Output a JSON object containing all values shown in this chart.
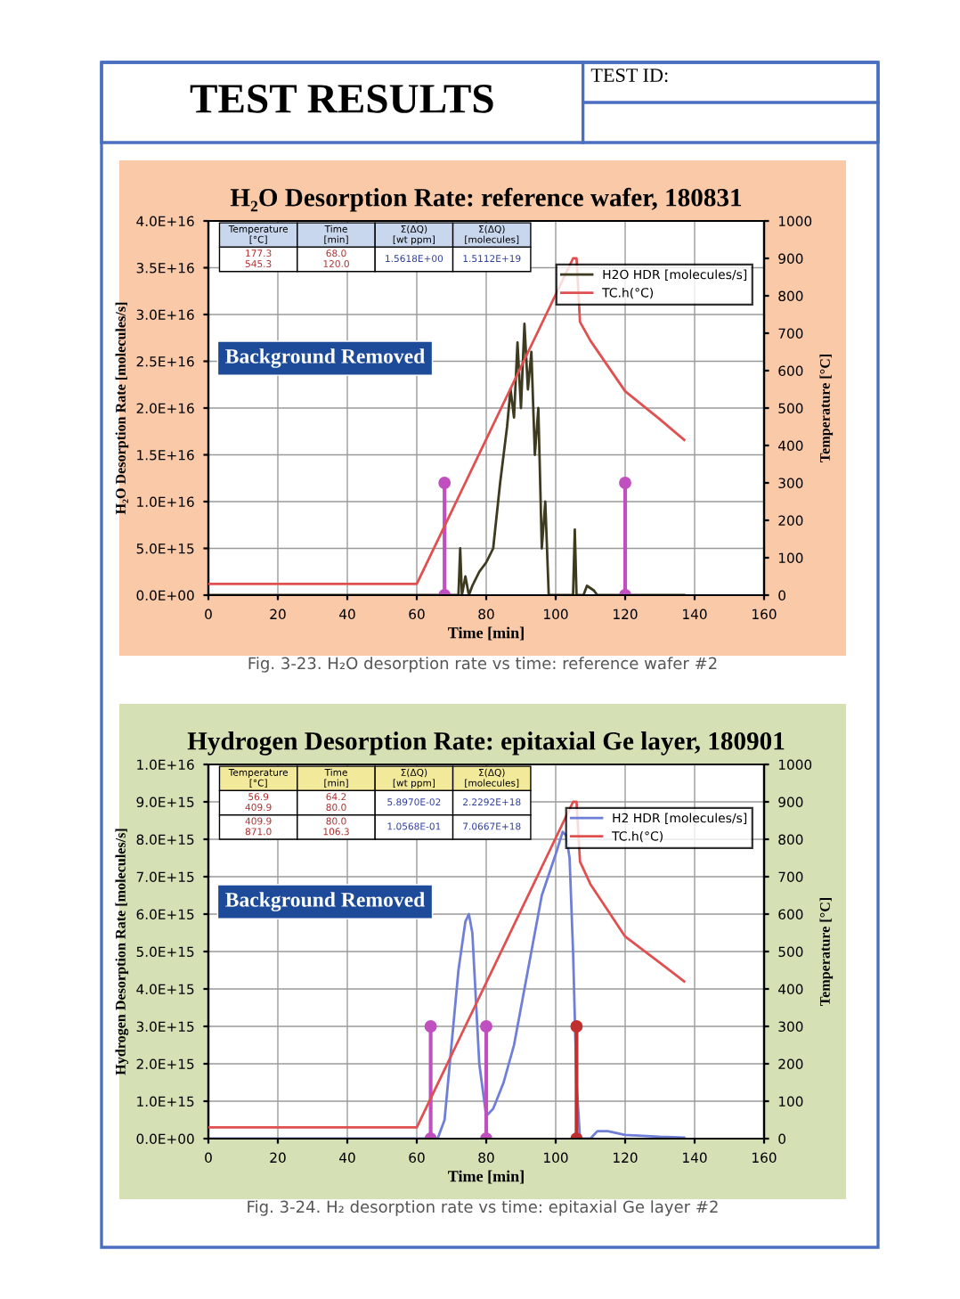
{
  "chart_data": [
    {
      "type": "other",
      "annotations": [
        "TEST RESULTS",
        "TEST ID:"
      ]
    },
    {
      "type": "line",
      "title": "H₂O Desorption Rate: reference wafer, 180831",
      "xlabel": "Time [min]",
      "ylabel": "H₂O Desorption Rate [molecules/s]",
      "y2label": "Temperature [°C]",
      "xlim": [
        0,
        160
      ],
      "xticks": [
        0,
        20,
        40,
        60,
        80,
        100,
        120,
        140,
        160
      ],
      "ylim": [
        0,
        4e+16
      ],
      "yticks": [
        {
          "value": 0,
          "label": "0.0E+00"
        },
        {
          "value": 5000000000000000.0,
          "label": "5.0E+15"
        },
        {
          "value": 1e+16,
          "label": "1.0E+16"
        },
        {
          "value": 1.5e+16,
          "label": "1.5E+16"
        },
        {
          "value": 2e+16,
          "label": "2.0E+16"
        },
        {
          "value": 2.5e+16,
          "label": "2.5E+16"
        },
        {
          "value": 3e+16,
          "label": "3.0E+16"
        },
        {
          "value": 3.5e+16,
          "label": "3.5E+16"
        },
        {
          "value": 4e+16,
          "label": "4.0E+16"
        }
      ],
      "y2lim": [
        0,
        1000
      ],
      "y2ticks": [
        0,
        100,
        200,
        300,
        400,
        500,
        600,
        700,
        800,
        900,
        1000
      ],
      "grid": true,
      "legend": "top right",
      "series": [
        {
          "name": "H2O HDR [molecules/s]",
          "color": "#3d3a20",
          "x": [
            0,
            68,
            72,
            72.5,
            73,
            74,
            75,
            76,
            78,
            80,
            82,
            84,
            85,
            86,
            87,
            88,
            89,
            90,
            91,
            92,
            93,
            94,
            95,
            96,
            97,
            98,
            105,
            105.5,
            106,
            108,
            109,
            111,
            112,
            137
          ],
          "values": [
            0,
            0,
            0,
            5000000000000000.0,
            0,
            2000000000000000.0,
            0,
            1000000000000000.0,
            2500000000000000.0,
            3500000000000000.0,
            5000000000000000.0,
            1.2e+16,
            1.5e+16,
            1.8e+16,
            2.2e+16,
            1.9e+16,
            2.7e+16,
            2e+16,
            2.9e+16,
            2.2e+16,
            2.6e+16,
            1.5e+16,
            2e+16,
            5000000000000000.0,
            1e+16,
            0,
            0,
            7000000000000000.0,
            0,
            0,
            1000000000000000.0,
            500000000000000.0,
            0,
            0
          ]
        },
        {
          "name": "TC.h(°C)",
          "color": "#e05050",
          "axis": "y2",
          "x": [
            0,
            60,
            105,
            106,
            107,
            110,
            120,
            130,
            137
          ],
          "values": [
            30,
            30,
            900,
            900,
            730,
            680,
            545,
            470,
            415
          ]
        },
        {
          "type": "line",
          "color": "#c050c0",
          "marker": "circle",
          "x": [
            68,
            68
          ],
          "values": [
            0,
            1.2e+16
          ]
        },
        {
          "type": "line",
          "color": "#c050c0",
          "marker": "circle",
          "x": [
            120,
            120
          ],
          "values": [
            0,
            1.2e+16
          ]
        }
      ],
      "annotations": [
        "Background Removed",
        "Fig. 3-23. H₂O desorption rate vs time: reference wafer #2",
        "Temperature\n[°C]",
        "Time\n[min]",
        "Σ(ΔQ)\n[wt ppm]",
        "Σ(ΔQ)\n[molecules]",
        "177.3\n545.3",
        "68.0\n120.0",
        "1.5618E+00",
        "1.5112E+19"
      ]
    },
    {
      "type": "line",
      "title": "Hydrogen Desorption Rate: epitaxial Ge layer, 180901",
      "xlabel": "Time [min]",
      "ylabel": "Hydrogen Desorption Rate [molecules/s]",
      "y2label": "Temperature [°C]",
      "xlim": [
        0,
        160
      ],
      "xticks": [
        0,
        20,
        40,
        60,
        80,
        100,
        120,
        140,
        160
      ],
      "ylim": [
        0,
        1e+16
      ],
      "yticks": [
        {
          "value": 0,
          "label": "0.0E+00"
        },
        {
          "value": 1000000000000000.0,
          "label": "1.0E+15"
        },
        {
          "value": 2000000000000000.0,
          "label": "2.0E+15"
        },
        {
          "value": 3000000000000000.0,
          "label": "3.0E+15"
        },
        {
          "value": 4000000000000000.0,
          "label": "4.0E+15"
        },
        {
          "value": 5000000000000000.0,
          "label": "5.0E+15"
        },
        {
          "value": 6000000000000000.0,
          "label": "6.0E+15"
        },
        {
          "value": 7000000000000000.0,
          "label": "7.0E+15"
        },
        {
          "value": 8000000000000000.0,
          "label": "8.0E+15"
        },
        {
          "value": 9000000000000000.0,
          "label": "9.0E+15"
        },
        {
          "value": 1e+16,
          "label": "1.0E+16"
        }
      ],
      "y2lim": [
        0,
        1000
      ],
      "y2ticks": [
        0,
        100,
        200,
        300,
        400,
        500,
        600,
        700,
        800,
        900,
        1000
      ],
      "grid": true,
      "legend": "top right",
      "series": [
        {
          "name": "H2 HDR [molecules/s]",
          "color": "#6f7fd8",
          "x": [
            0,
            64,
            66,
            68,
            70,
            72,
            74,
            75,
            76,
            78,
            80,
            82,
            85,
            88,
            92,
            96,
            100,
            102,
            103,
            104,
            105,
            106,
            107,
            110,
            112,
            115,
            120,
            130,
            137
          ],
          "values": [
            0,
            0,
            0,
            500000000000000.0,
            2500000000000000.0,
            4500000000000000.0,
            5800000000000000.0,
            6000000000000000.0,
            5500000000000000.0,
            2000000000000000.0,
            600000000000000.0,
            800000000000000.0,
            1500000000000000.0,
            2500000000000000.0,
            4500000000000000.0,
            6500000000000000.0,
            7600000000000000.0,
            8200000000000000.0,
            8100000000000000.0,
            7500000000000000.0,
            5000000000000000.0,
            1500000000000000.0,
            0,
            0,
            200000000000000.0,
            200000000000000.0,
            100000000000000.0,
            50000000000000.0,
            30000000000000.0
          ]
        },
        {
          "name": "TC.h(°C)",
          "color": "#e05050",
          "axis": "y2",
          "x": [
            0,
            60,
            105,
            106,
            107,
            110,
            120,
            130,
            137
          ],
          "values": [
            30,
            30,
            900,
            900,
            740,
            680,
            540,
            470,
            420
          ]
        },
        {
          "type": "line",
          "color": "#c050c0",
          "marker": "circle",
          "x": [
            64,
            64
          ],
          "values": [
            0,
            3000000000000000.0
          ]
        },
        {
          "type": "line",
          "color": "#c050c0",
          "marker": "circle",
          "x": [
            80,
            80
          ],
          "values": [
            0,
            3000000000000000.0
          ]
        },
        {
          "type": "line",
          "color": "#c03030",
          "marker": "circle",
          "x": [
            106,
            106
          ],
          "values": [
            0,
            3000000000000000.0
          ]
        }
      ],
      "annotations": [
        "Background Removed",
        "Fig. 3-24. H₂ desorption rate vs time: epitaxial Ge layer #2",
        "Temperature\n[°C]",
        "Time\n[min]",
        "Σ(ΔQ)\n[wt ppm]",
        "Σ(ΔQ)\n[molecules]",
        "56.9\n409.9",
        "64.2\n80.0",
        "5.8970E-02",
        "2.2292E+18",
        "409.9\n871.0",
        "80.0\n106.3",
        "1.0568E-01",
        "7.0667E+18"
      ]
    }
  ]
}
